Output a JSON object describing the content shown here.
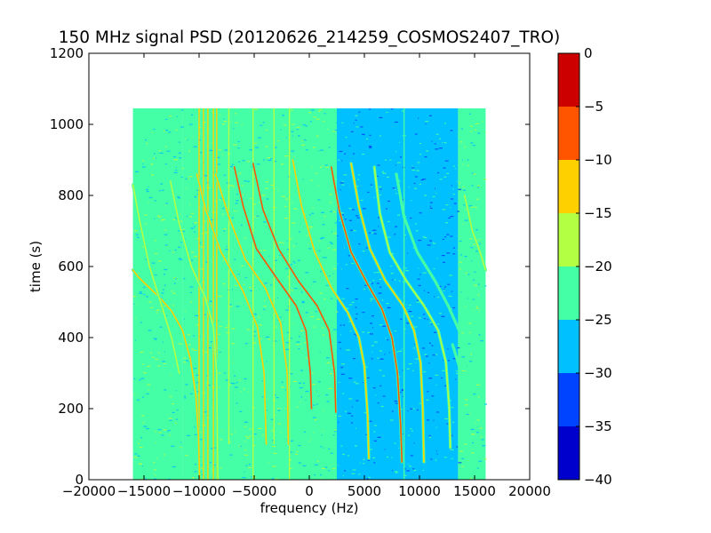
{
  "chart_data": {
    "type": "heatmap",
    "title": "150 MHz signal PSD (20120626_214259_COSMOS2407_TRO)",
    "xlabel": "frequency (Hz)",
    "ylabel": "time (s)",
    "xlim": [
      -20000,
      20000
    ],
    "ylim": [
      0,
      1200
    ],
    "xticks": [
      -20000,
      -15000,
      -10000,
      -5000,
      0,
      5000,
      10000,
      15000,
      20000
    ],
    "xtick_labels": [
      "−20000",
      "−15000",
      "−10000",
      "−5000",
      "0",
      "5000",
      "10000",
      "15000",
      "20000"
    ],
    "yticks": [
      0,
      200,
      400,
      600,
      800,
      1000,
      1200
    ],
    "ytick_labels": [
      "0",
      "200",
      "400",
      "600",
      "800",
      "1000",
      "1200"
    ],
    "data_extent": {
      "x": [
        -16000,
        16000
      ],
      "y": [
        0,
        1045
      ]
    },
    "colorbar": {
      "range": [
        -40,
        0
      ],
      "ticks": [
        0,
        -5,
        -10,
        -15,
        -20,
        -25,
        -30,
        -35,
        -40
      ],
      "tick_labels": [
        "0",
        "−5",
        "−10",
        "−15",
        "−20",
        "−25",
        "−30",
        "−35",
        "−40"
      ],
      "levels": [
        {
          "from": -40,
          "to": -35,
          "color": "#0000cd"
        },
        {
          "from": -35,
          "to": -30,
          "color": "#0044ff"
        },
        {
          "from": -30,
          "to": -25,
          "color": "#00c0ff"
        },
        {
          "from": -25,
          "to": -20,
          "color": "#44ffa6"
        },
        {
          "from": -20,
          "to": -15,
          "color": "#b3ff44"
        },
        {
          "from": -15,
          "to": -10,
          "color": "#ffd000"
        },
        {
          "from": -10,
          "to": -5,
          "color": "#ff5500"
        },
        {
          "from": -5,
          "to": 0,
          "color": "#cd0000"
        }
      ]
    },
    "background_regions": [
      {
        "x": [
          -16000,
          -11500
        ],
        "level": -22.5
      },
      {
        "x": [
          -11500,
          2500
        ],
        "level": -25
      },
      {
        "x": [
          2500,
          13500
        ],
        "level": -27.5
      },
      {
        "x": [
          13500,
          16000
        ],
        "level": -22.5
      }
    ],
    "vertical_lines": [
      {
        "x": -10000,
        "y": [
          0,
          1045
        ],
        "level": -15
      },
      {
        "x": -9600,
        "y": [
          0,
          1045
        ],
        "level": -15
      },
      {
        "x": -9200,
        "y": [
          0,
          1045
        ],
        "level": -12.5
      },
      {
        "x": -8700,
        "y": [
          0,
          1045
        ],
        "level": -15
      },
      {
        "x": -8400,
        "y": [
          0,
          1045
        ],
        "level": -12.5
      },
      {
        "x": -7300,
        "y": [
          100,
          1045
        ],
        "level": -17.5
      },
      {
        "x": -5100,
        "y": [
          0,
          1045
        ],
        "level": -17.5
      },
      {
        "x": -3200,
        "y": [
          100,
          1045
        ],
        "level": -20
      },
      {
        "x": -1800,
        "y": [
          0,
          1045
        ],
        "level": -17.5
      },
      {
        "x": 8600,
        "y": [
          0,
          1045
        ],
        "level": -22.5
      }
    ],
    "doppler_traces": [
      {
        "points": [
          [
            -16000,
            590
          ],
          [
            -15500,
            570
          ],
          [
            -14500,
            540
          ],
          [
            -13500,
            510
          ],
          [
            -12500,
            475
          ],
          [
            -11500,
            420
          ],
          [
            -10800,
            340
          ],
          [
            -10300,
            240
          ],
          [
            -10050,
            120
          ],
          [
            -9950,
            0
          ]
        ],
        "level": -15
      },
      {
        "points": [
          [
            -16000,
            830
          ],
          [
            -15400,
            730
          ],
          [
            -14500,
            600
          ],
          [
            -13500,
            500
          ],
          [
            -12500,
            400
          ],
          [
            -11800,
            300
          ]
        ],
        "level": -17.5
      },
      {
        "points": [
          [
            -12600,
            840
          ],
          [
            -11800,
            720
          ],
          [
            -10700,
            600
          ],
          [
            -9400,
            510
          ],
          [
            -8700,
            430
          ],
          [
            -8400,
            300
          ],
          [
            -8300,
            0
          ]
        ],
        "level": -17.5
      },
      {
        "points": [
          [
            -10200,
            860
          ],
          [
            -9400,
            760
          ],
          [
            -8000,
            640
          ],
          [
            -6000,
            530
          ],
          [
            -4700,
            430
          ],
          [
            -4100,
            300
          ],
          [
            -3900,
            100
          ]
        ],
        "level": -15
      },
      {
        "points": [
          [
            -8500,
            860
          ],
          [
            -7300,
            740
          ],
          [
            -5800,
            620
          ],
          [
            -4000,
            540
          ],
          [
            -2600,
            440
          ],
          [
            -2000,
            300
          ],
          [
            -1900,
            100
          ]
        ],
        "level": -15
      },
      {
        "points": [
          [
            -6800,
            880
          ],
          [
            -6000,
            770
          ],
          [
            -4800,
            650
          ],
          [
            -2800,
            560
          ],
          [
            -1200,
            490
          ],
          [
            -300,
            420
          ],
          [
            100,
            300
          ],
          [
            200,
            200
          ]
        ],
        "level": -7.5
      },
      {
        "points": [
          [
            -5100,
            890
          ],
          [
            -4200,
            760
          ],
          [
            -2800,
            650
          ],
          [
            -1000,
            560
          ],
          [
            700,
            490
          ],
          [
            1800,
            420
          ],
          [
            2300,
            300
          ],
          [
            2400,
            190
          ]
        ],
        "level": -7.5
      },
      {
        "points": [
          [
            -1500,
            900
          ],
          [
            -700,
            770
          ],
          [
            500,
            640
          ],
          [
            2000,
            540
          ],
          [
            3500,
            470
          ],
          [
            4500,
            400
          ],
          [
            5000,
            320
          ],
          [
            5300,
            180
          ],
          [
            5400,
            60
          ]
        ],
        "level": -12.5
      },
      {
        "points": [
          [
            2000,
            880
          ],
          [
            2700,
            760
          ],
          [
            3800,
            640
          ],
          [
            5300,
            550
          ],
          [
            6600,
            480
          ],
          [
            7500,
            400
          ],
          [
            8000,
            300
          ],
          [
            8300,
            150
          ],
          [
            8400,
            50
          ]
        ],
        "level": -10
      },
      {
        "points": [
          [
            3800,
            890
          ],
          [
            4500,
            770
          ],
          [
            5500,
            650
          ],
          [
            6900,
            560
          ],
          [
            8500,
            490
          ],
          [
            9500,
            420
          ],
          [
            10100,
            330
          ],
          [
            10300,
            200
          ],
          [
            10400,
            50
          ]
        ],
        "level": -12.5
      },
      {
        "points": [
          [
            5900,
            880
          ],
          [
            6400,
            750
          ],
          [
            7300,
            640
          ],
          [
            8800,
            560
          ],
          [
            10400,
            490
          ],
          [
            11700,
            420
          ],
          [
            12400,
            330
          ],
          [
            12700,
            200
          ],
          [
            12800,
            90
          ]
        ],
        "level": -17.5
      },
      {
        "points": [
          [
            7900,
            860
          ],
          [
            8600,
            740
          ],
          [
            9800,
            640
          ],
          [
            11400,
            560
          ],
          [
            12600,
            490
          ],
          [
            13600,
            420
          ],
          [
            14400,
            330
          ],
          [
            14800,
            200
          ]
        ],
        "level": -22.5
      },
      {
        "points": [
          [
            14100,
            800
          ],
          [
            14800,
            700
          ],
          [
            15500,
            640
          ],
          [
            16000,
            590
          ]
        ],
        "level": -17.5
      },
      {
        "points": [
          [
            13000,
            380
          ],
          [
            13600,
            320
          ],
          [
            14000,
            250
          ]
        ],
        "level": -22.5
      }
    ]
  }
}
